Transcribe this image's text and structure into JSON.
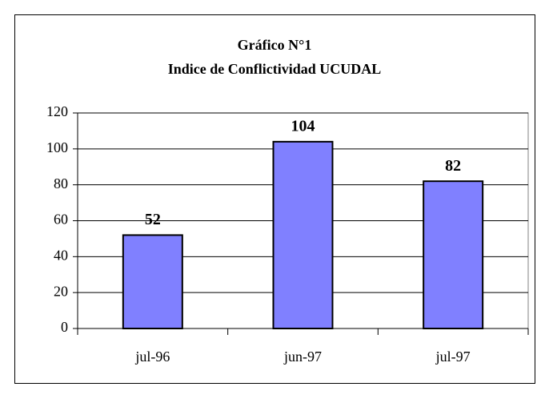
{
  "chart_data": {
    "type": "bar",
    "title": "Gráfico N°1",
    "subtitle": "Indice de Conflictividad UCUDAL",
    "categories": [
      "jul-96",
      "jun-97",
      "jul-97"
    ],
    "values": [
      52,
      104,
      82
    ],
    "color": "#8080ff",
    "ylim": [
      0,
      120
    ],
    "yticks": [
      0,
      20,
      40,
      60,
      80,
      100,
      120
    ],
    "grid": true
  }
}
